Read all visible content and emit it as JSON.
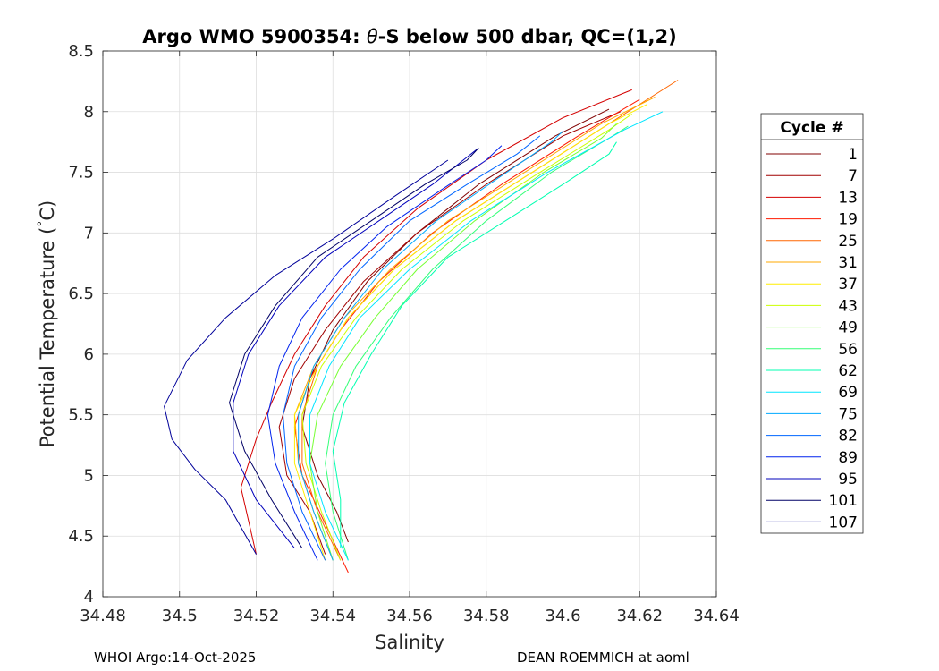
{
  "chart_data": {
    "type": "line",
    "title_prefix": "Argo WMO 5900354: ",
    "title_theta": "θ",
    "title_suffix": "-S below 500 dbar,  QC=(1,2)",
    "xlabel": "Salinity",
    "ylabel_main": "Potential Temperature (",
    "ylabel_deg": "°",
    "ylabel_unit": "C)",
    "xlim": [
      34.48,
      34.64
    ],
    "ylim": [
      4,
      8.5
    ],
    "xticks": [
      "34.48",
      "34.5",
      "34.52",
      "34.54",
      "34.56",
      "34.58",
      "34.6",
      "34.62",
      "34.64"
    ],
    "yticks": [
      "4",
      "4.5",
      "5",
      "5.5",
      "6",
      "6.5",
      "7",
      "7.5",
      "8",
      "8.5"
    ],
    "grid": true,
    "legend_title": "Cycle #",
    "legend_position": "outside-right",
    "series": [
      {
        "name": "1",
        "color": "#800000",
        "x": [
          34.544,
          34.541,
          34.536,
          34.532,
          34.534,
          34.54,
          34.549,
          34.562,
          34.578,
          34.598,
          34.612
        ],
        "y": [
          4.45,
          4.7,
          5.0,
          5.4,
          5.8,
          6.2,
          6.6,
          7.0,
          7.4,
          7.8,
          8.02
        ]
      },
      {
        "name": "7",
        "color": "#a00000",
        "x": [
          34.538,
          34.534,
          34.528,
          34.526,
          34.53,
          34.538,
          34.548,
          34.562,
          34.58,
          34.6,
          34.615
        ],
        "y": [
          4.35,
          4.7,
          5.0,
          5.4,
          5.8,
          6.2,
          6.6,
          7.0,
          7.4,
          7.8,
          8.0
        ]
      },
      {
        "name": "13",
        "color": "#d40000",
        "x": [
          34.52,
          34.516,
          34.52,
          34.524,
          34.53,
          34.538,
          34.548,
          34.562,
          34.58,
          34.6,
          34.618
        ],
        "y": [
          4.35,
          4.9,
          5.3,
          5.6,
          6.0,
          6.4,
          6.8,
          7.2,
          7.6,
          7.95,
          8.18
        ]
      },
      {
        "name": "19",
        "color": "#ff1a00",
        "x": [
          34.544,
          34.538,
          34.532,
          34.53,
          34.534,
          34.542,
          34.552,
          34.566,
          34.584,
          34.604,
          34.62
        ],
        "y": [
          4.2,
          4.6,
          5.0,
          5.4,
          5.8,
          6.2,
          6.6,
          7.0,
          7.4,
          7.8,
          8.1
        ]
      },
      {
        "name": "25",
        "color": "#ff6600",
        "x": [
          34.542,
          34.536,
          34.532,
          34.532,
          34.536,
          34.544,
          34.556,
          34.572,
          34.592,
          34.612,
          34.63
        ],
        "y": [
          4.3,
          4.7,
          5.1,
          5.5,
          5.9,
          6.3,
          6.7,
          7.1,
          7.5,
          7.9,
          8.26
        ]
      },
      {
        "name": "31",
        "color": "#ffaa00",
        "x": [
          34.54,
          34.535,
          34.531,
          34.53,
          34.535,
          34.543,
          34.555,
          34.57,
          34.59,
          34.61,
          34.624
        ],
        "y": [
          4.3,
          4.7,
          5.1,
          5.5,
          5.9,
          6.3,
          6.7,
          7.1,
          7.5,
          7.9,
          8.12
        ]
      },
      {
        "name": "37",
        "color": "#ffee00",
        "x": [
          34.538,
          34.534,
          34.53,
          34.53,
          34.536,
          34.544,
          34.556,
          34.572,
          34.592,
          34.612,
          34.622
        ],
        "y": [
          4.3,
          4.7,
          5.1,
          5.5,
          5.9,
          6.3,
          6.7,
          7.1,
          7.5,
          7.9,
          8.06
        ]
      },
      {
        "name": "43",
        "color": "#ccff00",
        "x": [
          34.542,
          34.537,
          34.533,
          34.532,
          34.537,
          34.546,
          34.558,
          34.574,
          34.594,
          34.612,
          34.618
        ],
        "y": [
          4.3,
          4.7,
          5.1,
          5.5,
          5.9,
          6.3,
          6.7,
          7.1,
          7.5,
          7.85,
          7.98
        ]
      },
      {
        "name": "49",
        "color": "#77ff33",
        "x": [
          34.54,
          34.536,
          34.534,
          34.536,
          34.542,
          34.551,
          34.562,
          34.577,
          34.595,
          34.61,
          34.614
        ],
        "y": [
          4.3,
          4.7,
          5.1,
          5.5,
          5.9,
          6.3,
          6.7,
          7.1,
          7.5,
          7.78,
          7.9
        ]
      },
      {
        "name": "56",
        "color": "#33ff77",
        "x": [
          34.544,
          34.54,
          34.538,
          34.54,
          34.546,
          34.555,
          34.566,
          34.58,
          34.597,
          34.613,
          34.617
        ],
        "y": [
          4.3,
          4.7,
          5.1,
          5.5,
          5.9,
          6.3,
          6.7,
          7.1,
          7.5,
          7.8,
          7.88
        ]
      },
      {
        "name": "62",
        "color": "#00ffb0",
        "x": [
          34.542,
          34.542,
          34.54,
          34.543,
          34.55,
          34.558,
          34.57,
          34.585,
          34.6,
          34.612,
          34.614
        ],
        "y": [
          4.4,
          4.8,
          5.2,
          5.6,
          6.0,
          6.4,
          6.8,
          7.1,
          7.4,
          7.65,
          7.75
        ]
      },
      {
        "name": "69",
        "color": "#00e5ff",
        "x": [
          34.544,
          34.538,
          34.534,
          34.534,
          34.539,
          34.547,
          34.56,
          34.576,
          34.596,
          34.616,
          34.626
        ],
        "y": [
          4.3,
          4.7,
          5.1,
          5.5,
          5.9,
          6.3,
          6.7,
          7.1,
          7.5,
          7.85,
          8.0
        ]
      },
      {
        "name": "75",
        "color": "#00aaff",
        "x": [
          34.54,
          34.535,
          34.531,
          34.531,
          34.535,
          34.543,
          34.553,
          34.567,
          34.583,
          34.597,
          34.6
        ],
        "y": [
          4.3,
          4.7,
          5.1,
          5.5,
          5.9,
          6.3,
          6.7,
          7.1,
          7.45,
          7.75,
          7.84
        ]
      },
      {
        "name": "82",
        "color": "#0066ff",
        "x": [
          34.538,
          34.532,
          34.528,
          34.527,
          34.53,
          34.537,
          34.547,
          34.56,
          34.575,
          34.588,
          34.594
        ],
        "y": [
          4.3,
          4.7,
          5.1,
          5.5,
          5.9,
          6.3,
          6.7,
          7.1,
          7.4,
          7.65,
          7.8
        ]
      },
      {
        "name": "89",
        "color": "#0022ee",
        "x": [
          34.536,
          34.53,
          34.525,
          34.523,
          34.526,
          34.532,
          34.542,
          34.554,
          34.568,
          34.58,
          34.584
        ],
        "y": [
          4.3,
          4.7,
          5.1,
          5.5,
          5.9,
          6.3,
          6.7,
          7.05,
          7.35,
          7.6,
          7.72
        ]
      },
      {
        "name": "95",
        "color": "#0000bb",
        "x": [
          34.53,
          34.52,
          34.514,
          34.514,
          34.518,
          34.526,
          34.538,
          34.552,
          34.566,
          34.578
        ],
        "y": [
          4.4,
          4.8,
          5.2,
          5.6,
          6.0,
          6.4,
          6.8,
          7.1,
          7.4,
          7.7
        ]
      },
      {
        "name": "101",
        "color": "#000066",
        "x": [
          34.532,
          34.524,
          34.517,
          34.513,
          34.517,
          34.525,
          34.536,
          34.55,
          34.564,
          34.575,
          34.578
        ],
        "y": [
          4.4,
          4.8,
          5.2,
          5.6,
          6.0,
          6.4,
          6.8,
          7.1,
          7.4,
          7.6,
          7.7
        ]
      },
      {
        "name": "107",
        "color": "#000099",
        "x": [
          34.52,
          34.512,
          34.504,
          34.498,
          34.496,
          34.502,
          34.512,
          34.525,
          34.54,
          34.556,
          34.57
        ],
        "y": [
          4.35,
          4.8,
          5.05,
          5.3,
          5.57,
          5.95,
          6.3,
          6.65,
          6.95,
          7.3,
          7.6
        ]
      }
    ]
  },
  "footer": {
    "left": "WHOI Argo:14-Oct-2025",
    "right": "DEAN ROEMMICH at aoml"
  }
}
